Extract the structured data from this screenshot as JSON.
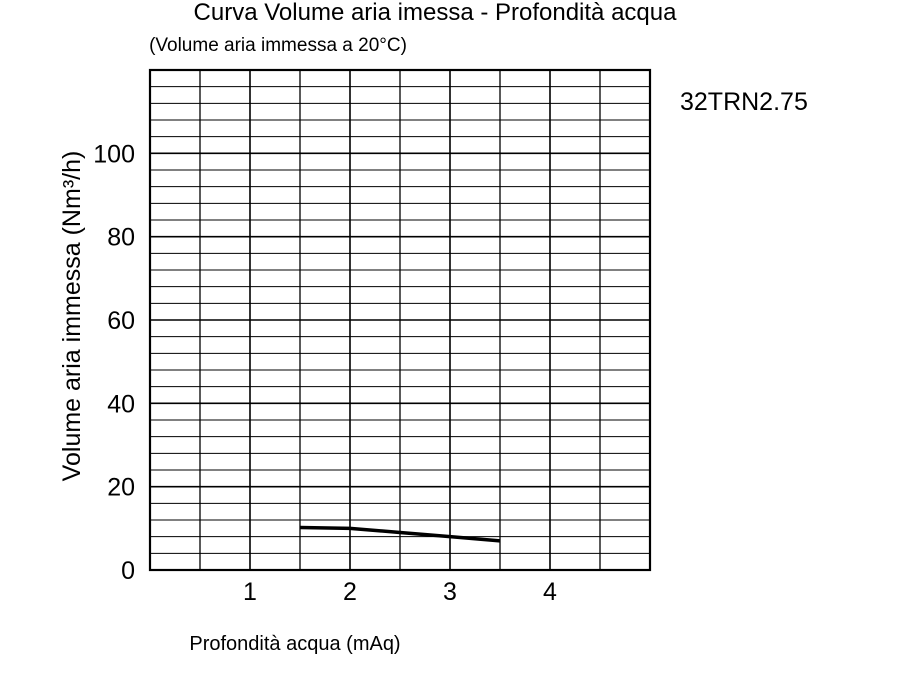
{
  "chart_data": {
    "type": "line",
    "title": "Curva Volume aria imessa - Profondità acqua",
    "subtitle": "(Volume aria immessa a 20°C)",
    "model": "32TRN2.75",
    "xlabel": "Profondità acqua (mAq)",
    "ylabel": "Volume aria immessa (Nm³/h)",
    "xlim": [
      0,
      5
    ],
    "ylim": [
      0,
      120
    ],
    "xticks": [
      1,
      2,
      3,
      4
    ],
    "xtick_labels": [
      "1",
      "2",
      "3",
      "4"
    ],
    "yticks": [
      0,
      20,
      40,
      60,
      80,
      100
    ],
    "ytick_labels": [
      "0",
      "20",
      "40",
      "60",
      "80",
      "100"
    ],
    "grid": true,
    "series": [
      {
        "x": [
          1.5,
          2.0,
          2.5,
          3.0,
          3.5
        ],
        "y": [
          10.2,
          10.0,
          9.0,
          8.0,
          7.0
        ],
        "color": "#000000"
      }
    ]
  }
}
